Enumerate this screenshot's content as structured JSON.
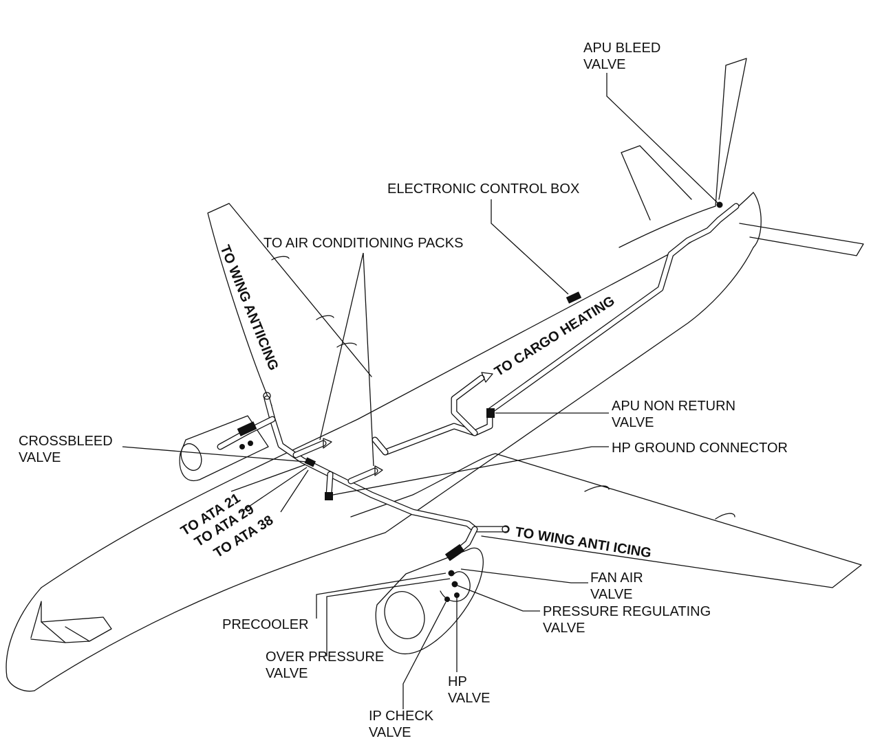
{
  "labels": {
    "apu_bleed_valve": [
      "APU BLEED",
      "VALVE"
    ],
    "electronic_control_box": "ELECTRONIC CONTROL BOX",
    "to_air_conditioning_packs": "TO AIR CONDITIONING PACKS",
    "to_wing_antiicing_left": "TO WING ANTIICING",
    "to_cargo_heating": "TO CARGO HEATING",
    "apu_non_return_valve": [
      "APU NON RETURN",
      "VALVE"
    ],
    "crossbleed_valve": [
      "CROSSBLEED",
      "VALVE"
    ],
    "hp_ground_connector": "HP GROUND CONNECTOR",
    "to_ata": [
      "TO ATA 21",
      "TO ATA 29",
      "TO ATA 38"
    ],
    "to_wing_anti_icing_right": "TO WING ANTI ICING",
    "fan_air_valve": [
      "FAN AIR",
      "VALVE"
    ],
    "pressure_regulating_valve": [
      "PRESSURE REGULATING",
      "VALVE"
    ],
    "precooler": "PRECOOLER",
    "over_pressure_valve": [
      "OVER PRESSURE",
      "VALVE"
    ],
    "hp_valve": [
      "HP",
      "VALVE"
    ],
    "ip_check_valve": [
      "IP CHECK",
      "VALVE"
    ]
  }
}
